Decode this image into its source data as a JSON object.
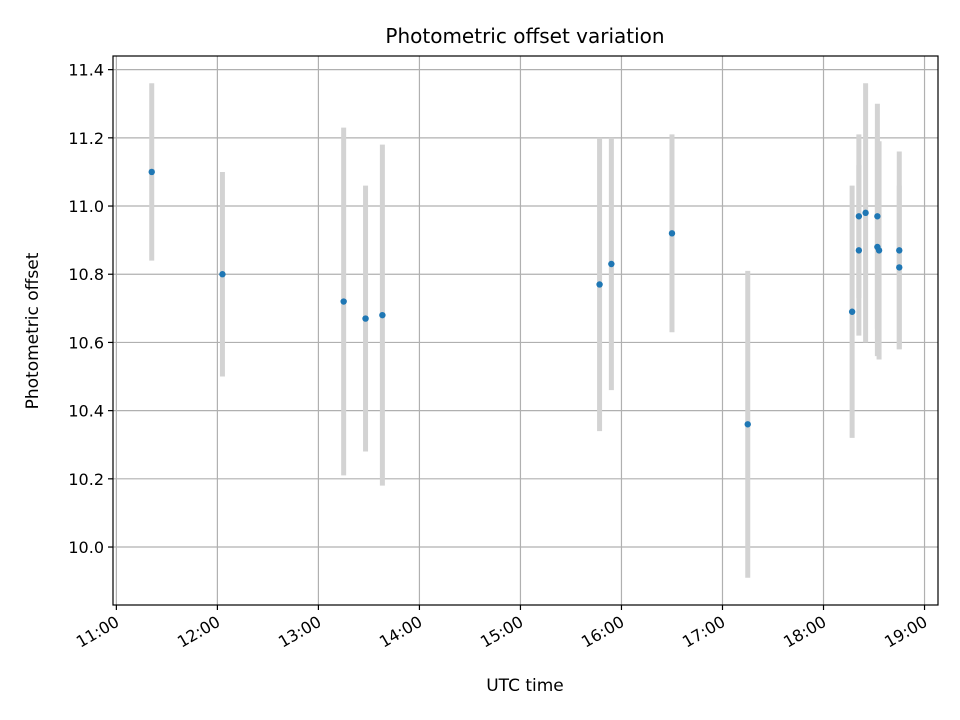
{
  "chart_data": {
    "type": "scatter",
    "title": "Photometric offset variation",
    "xlabel": "UTC time",
    "ylabel": "Photometric offset",
    "xlim": [
      "10:58",
      "19:08"
    ],
    "ylim": [
      9.83,
      11.44
    ],
    "x_ticks": [
      "11:00",
      "12:00",
      "13:00",
      "14:00",
      "15:00",
      "16:00",
      "17:00",
      "18:00",
      "19:00"
    ],
    "y_ticks": [
      10.0,
      10.2,
      10.4,
      10.6,
      10.8,
      11.0,
      11.2,
      11.4
    ],
    "grid": true,
    "legend": "none",
    "colors": {
      "point": "#1f77b4",
      "errorbar": "#d3d3d3",
      "grid": "#b0b0b0"
    },
    "series": [
      {
        "points": [
          {
            "x": "11:21",
            "y": 11.1,
            "err": 0.26
          },
          {
            "x": "12:03",
            "y": 10.8,
            "err": 0.3
          },
          {
            "x": "13:15",
            "y": 10.72,
            "err": 0.51
          },
          {
            "x": "13:28",
            "y": 10.67,
            "err": 0.39
          },
          {
            "x": "13:38",
            "y": 10.68,
            "err": 0.5
          },
          {
            "x": "15:47",
            "y": 10.77,
            "err": 0.43
          },
          {
            "x": "15:54",
            "y": 10.83,
            "err": 0.37
          },
          {
            "x": "16:30",
            "y": 10.92,
            "err": 0.29
          },
          {
            "x": "17:15",
            "y": 10.36,
            "err": 0.45
          },
          {
            "x": "18:17",
            "y": 10.69,
            "err": 0.37
          },
          {
            "x": "18:21",
            "y": 10.87,
            "err": 0.25
          },
          {
            "x": "18:21",
            "y": 10.97,
            "err": 0.24
          },
          {
            "x": "18:25",
            "y": 10.98,
            "err": 0.38
          },
          {
            "x": "18:32",
            "y": 10.97,
            "err": 0.33
          },
          {
            "x": "18:32",
            "y": 10.88,
            "err": 0.32
          },
          {
            "x": "18:33",
            "y": 10.87,
            "err": 0.32
          },
          {
            "x": "18:45",
            "y": 10.87,
            "err": 0.29
          },
          {
            "x": "18:45",
            "y": 10.82,
            "err": 0.24
          }
        ]
      }
    ]
  }
}
